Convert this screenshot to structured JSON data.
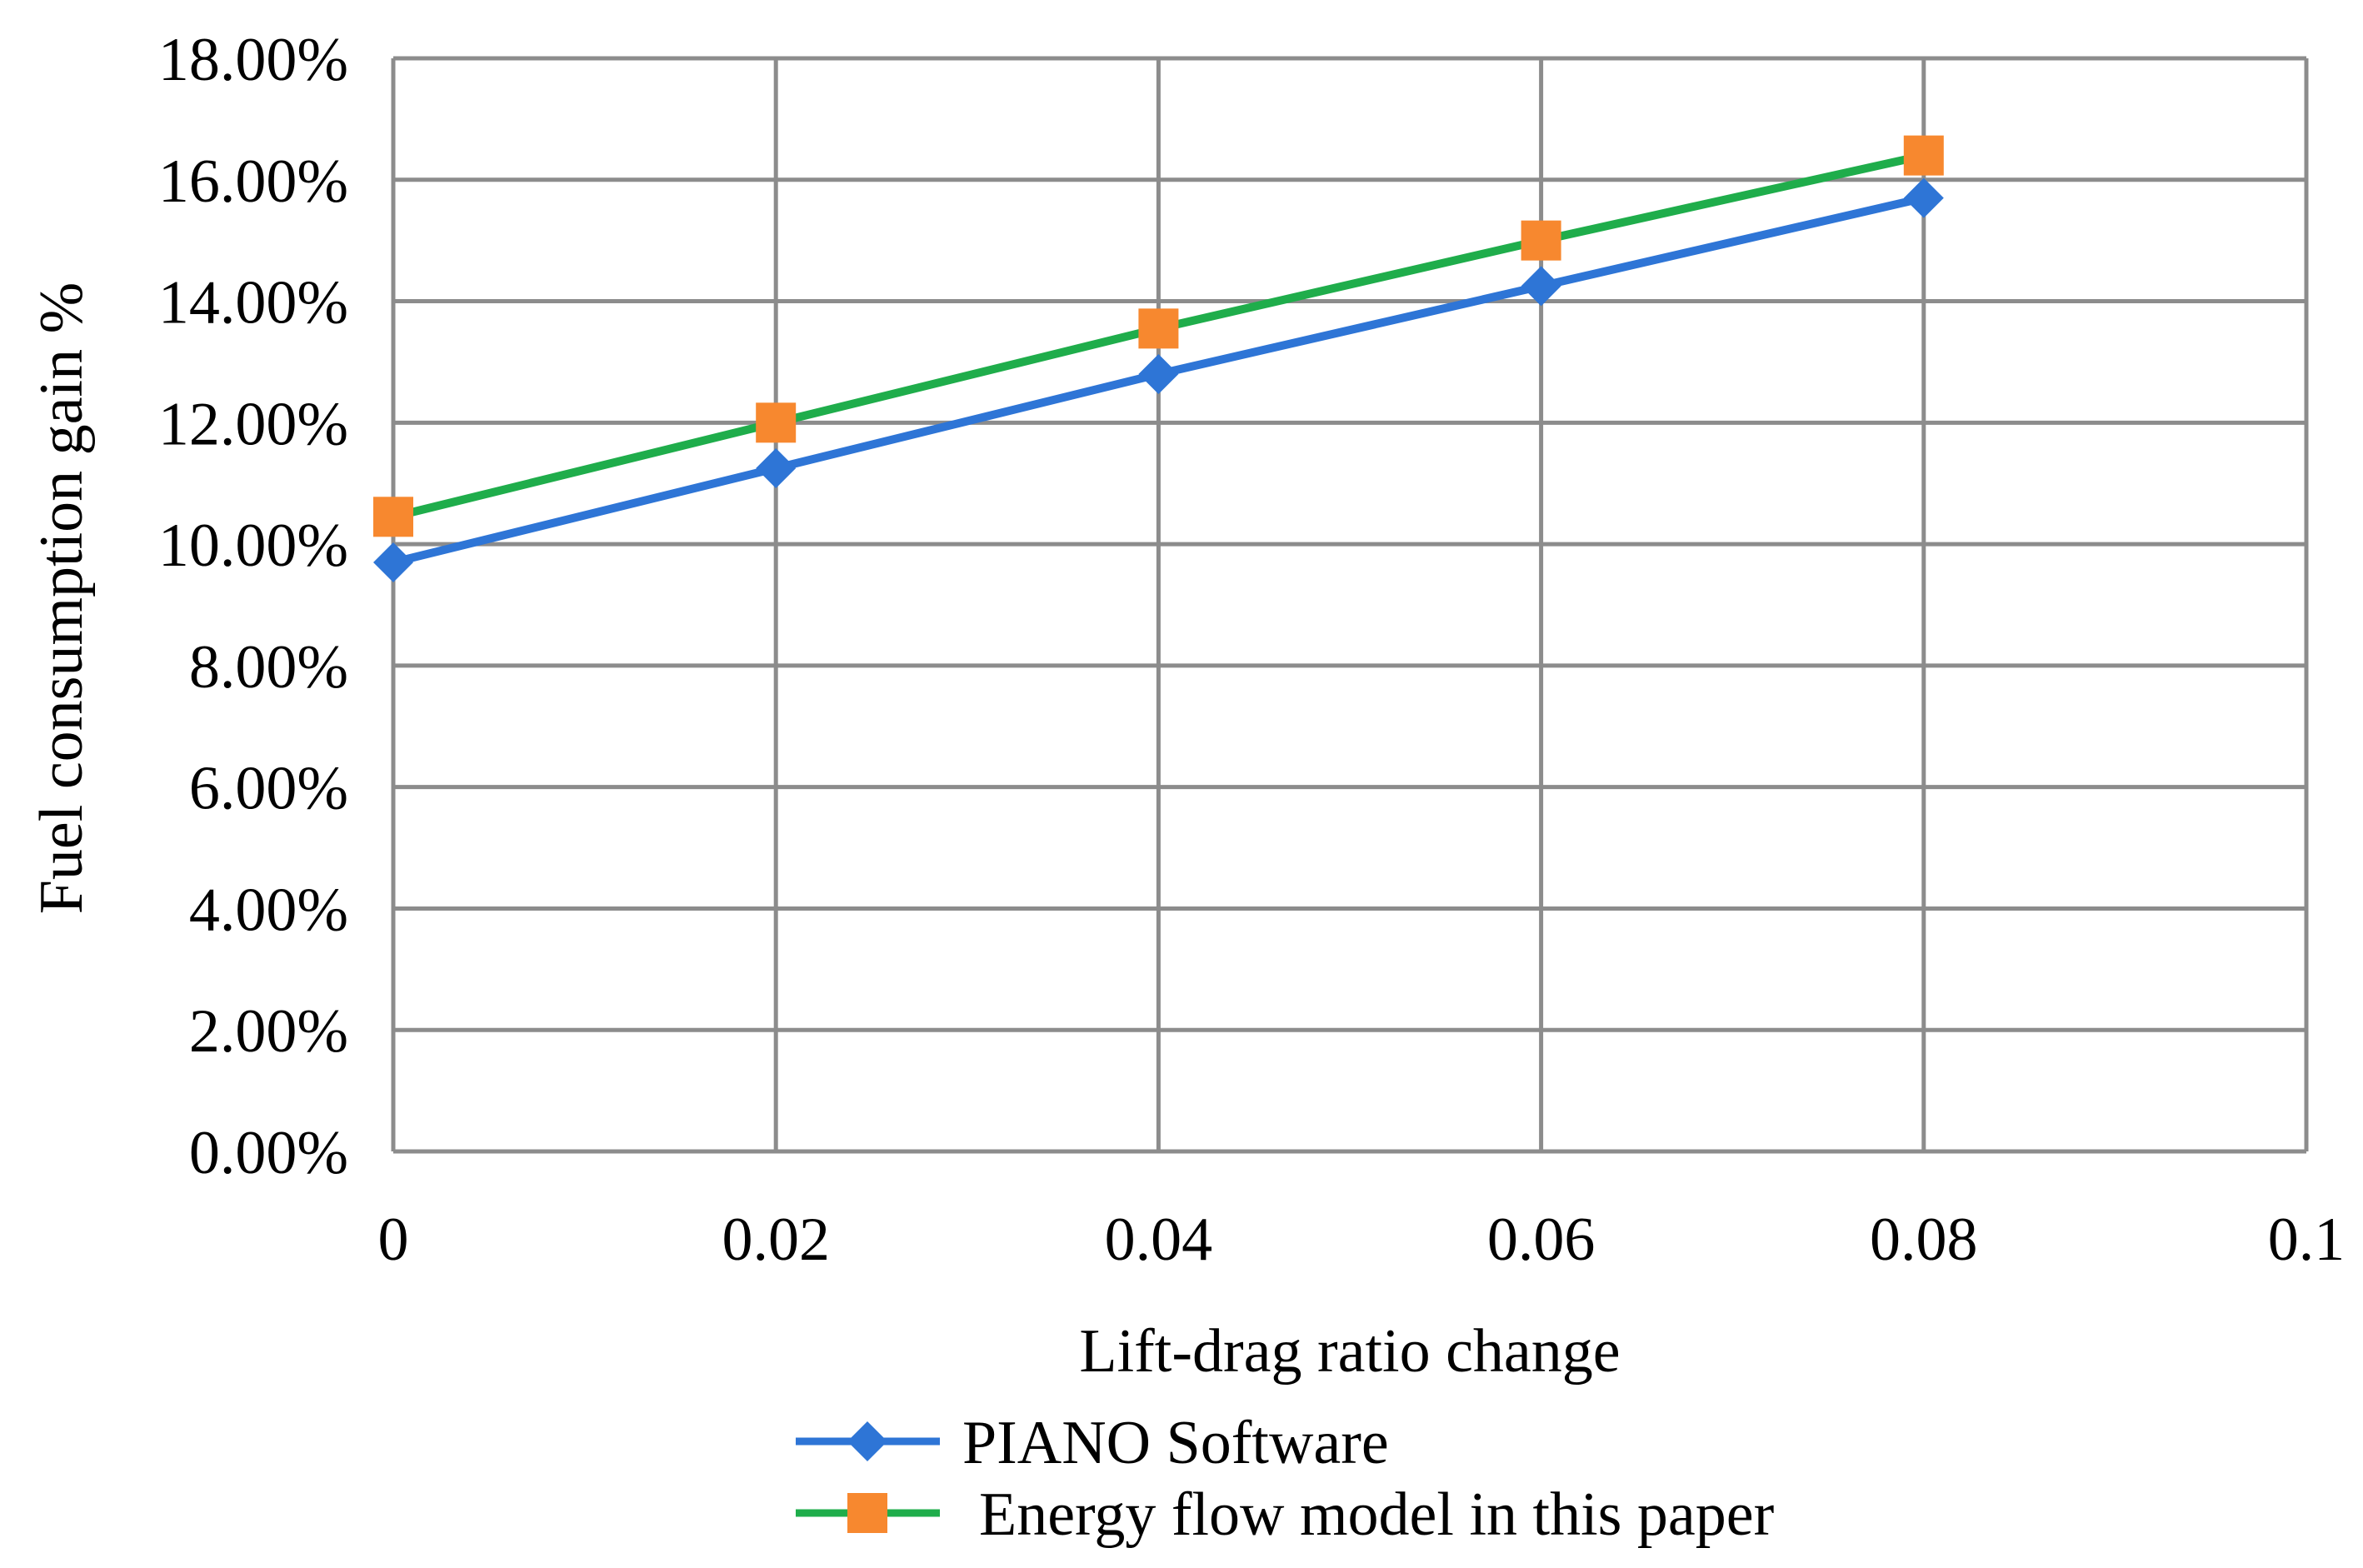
{
  "chart_data": {
    "type": "line",
    "xlabel": "Lift-drag ratio change",
    "ylabel": "Fuel consumption gain %",
    "xlim": [
      0,
      0.1
    ],
    "ylim": [
      0,
      0.18
    ],
    "x_ticks": [
      "0",
      "0.02",
      "0.04",
      "0.06",
      "0.08",
      "0.1"
    ],
    "y_ticks": [
      "0.00%",
      "2.00%",
      "4.00%",
      "6.00%",
      "8.00%",
      "10.00%",
      "12.00%",
      "14.00%",
      "16.00%",
      "18.00%"
    ],
    "grid": true,
    "legend_position": "bottom",
    "series": [
      {
        "name": "PIANO Software",
        "color": "#2E75D6",
        "marker": "diamond",
        "x": [
          0,
          0.02,
          0.04,
          0.06,
          0.08
        ],
        "y": [
          0.097,
          0.1125,
          0.128,
          0.1425,
          0.157
        ]
      },
      {
        "name": "Energy flow model in this paper",
        "color": "#1FAD4B",
        "marker_color": "#F7882F",
        "marker": "square",
        "x": [
          0,
          0.02,
          0.04,
          0.06,
          0.08
        ],
        "y": [
          0.1045,
          0.12,
          0.1355,
          0.15,
          0.164
        ]
      }
    ]
  }
}
